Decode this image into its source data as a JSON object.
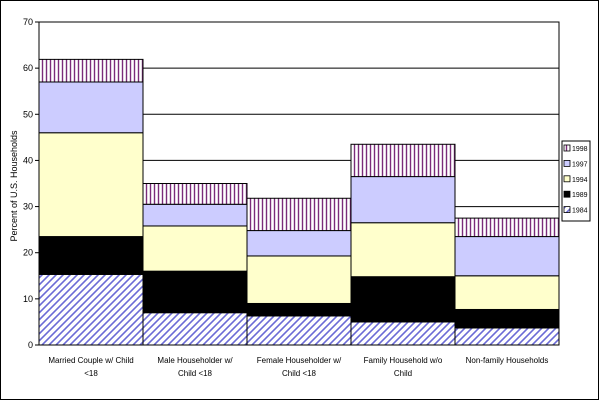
{
  "chart_data": {
    "type": "bar",
    "stacked": true,
    "title": "",
    "xlabel": "",
    "ylabel": "Percent of U.S. Households",
    "ylim": [
      0,
      70
    ],
    "yticks": [
      "0",
      "10",
      "20",
      "30",
      "40",
      "50",
      "60",
      "70"
    ],
    "grid": "horizontal",
    "legend_position": "right",
    "categories": [
      [
        "Married Couple w/ Child",
        "<18"
      ],
      [
        "Male Householder w/",
        "Child <18"
      ],
      [
        "Female Householder w/",
        "Child <18"
      ],
      [
        "Family Household w/o",
        "Child"
      ],
      [
        "Non-family Households"
      ]
    ],
    "series": [
      {
        "name": "1984",
        "values": [
          15.3,
          7.0,
          6.3,
          5.0,
          3.7
        ],
        "fill": "hatch-diagonal"
      },
      {
        "name": "1989",
        "values": [
          8.2,
          9.0,
          2.7,
          9.8,
          4.0
        ],
        "fill": "#000000"
      },
      {
        "name": "1994",
        "values": [
          22.5,
          9.8,
          10.3,
          11.7,
          7.3
        ],
        "fill": "#ffffcc"
      },
      {
        "name": "1997",
        "values": [
          11.0,
          4.7,
          5.5,
          10.0,
          8.5
        ],
        "fill": "#ccccff"
      },
      {
        "name": "1998",
        "values": [
          4.9,
          4.5,
          7.0,
          7.0,
          4.0
        ],
        "fill": "hatch-vertical"
      }
    ],
    "legend_order": [
      "1998",
      "1997",
      "1994",
      "1989",
      "1984"
    ]
  }
}
